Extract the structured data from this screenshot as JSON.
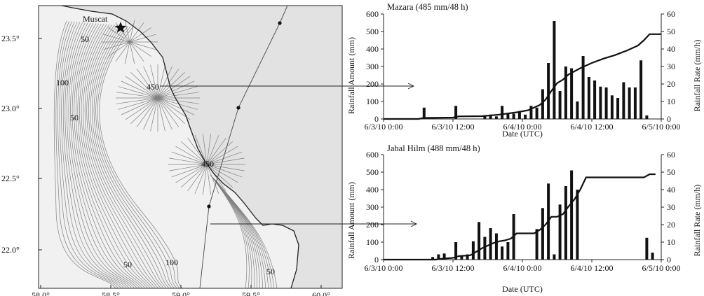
{
  "map": {
    "city": "Muscat",
    "lat_ticks": [
      "23.5°",
      "23.0°",
      "22.5°",
      "22.0°"
    ],
    "lon_ticks": [
      "58.0°",
      "58.5°",
      "59.0°",
      "59.5°",
      "60.0°"
    ],
    "contour_labels": [
      "50",
      "100",
      "50",
      "450",
      "450",
      "50",
      "100",
      "50"
    ]
  },
  "chart_data": [
    {
      "type": "bar",
      "title": "Mazara (485 mm/48 h)",
      "xlabel": "Date (UTC)",
      "ylabel": "Rainfall Amount (mm)",
      "ylabel_right": "Rainfall Rate (mm/h)",
      "ylim": [
        0,
        600
      ],
      "ylim_right": [
        0,
        60
      ],
      "y_ticks": [
        "0",
        "100",
        "200",
        "300",
        "400",
        "500",
        "600"
      ],
      "y_ticks_right": [
        "0",
        "10",
        "20",
        "30",
        "40",
        "50",
        "60"
      ],
      "x_ticks": [
        "6/3/10 0:00",
        "6/3/10 12:00",
        "6/4/10 0:00",
        "6/4/10 12:00",
        "6/5/10 0:00"
      ],
      "xlim_hours": [
        0,
        48
      ],
      "series": [
        {
          "kind": "bar",
          "axis": "right",
          "points": [
            {
              "h": 7.0,
              "v": 6.5
            },
            {
              "h": 12.5,
              "v": 7.5
            },
            {
              "h": 17.5,
              "v": 1.5
            },
            {
              "h": 18.5,
              "v": 2.5
            },
            {
              "h": 19.5,
              "v": 1.5
            },
            {
              "h": 20.5,
              "v": 7.5
            },
            {
              "h": 21.5,
              "v": 3.5
            },
            {
              "h": 22.5,
              "v": 3
            },
            {
              "h": 23.5,
              "v": 4.5
            },
            {
              "h": 24.5,
              "v": 2.5
            },
            {
              "h": 25.5,
              "v": 7.5
            },
            {
              "h": 26.5,
              "v": 6.5
            },
            {
              "h": 27.5,
              "v": 17
            },
            {
              "h": 28.5,
              "v": 32
            },
            {
              "h": 29.5,
              "v": 56
            },
            {
              "h": 30.5,
              "v": 16
            },
            {
              "h": 31.5,
              "v": 30
            },
            {
              "h": 32.5,
              "v": 29
            },
            {
              "h": 33.5,
              "v": 10
            },
            {
              "h": 34.5,
              "v": 36
            },
            {
              "h": 35.5,
              "v": 24
            },
            {
              "h": 36.5,
              "v": 22
            },
            {
              "h": 37.5,
              "v": 18.5
            },
            {
              "h": 38.5,
              "v": 18
            },
            {
              "h": 39.5,
              "v": 13.5
            },
            {
              "h": 40.5,
              "v": 12
            },
            {
              "h": 41.5,
              "v": 21
            },
            {
              "h": 42.5,
              "v": 18
            },
            {
              "h": 43.5,
              "v": 18
            },
            {
              "h": 44.5,
              "v": 33.5
            },
            {
              "h": 45.5,
              "v": 2
            }
          ]
        },
        {
          "kind": "line",
          "axis": "left",
          "points": [
            {
              "h": 0,
              "v": 0
            },
            {
              "h": 6,
              "v": 0
            },
            {
              "h": 7,
              "v": 6
            },
            {
              "h": 12,
              "v": 8
            },
            {
              "h": 13,
              "v": 15
            },
            {
              "h": 17,
              "v": 16
            },
            {
              "h": 20,
              "v": 25
            },
            {
              "h": 23,
              "v": 38
            },
            {
              "h": 25,
              "v": 50
            },
            {
              "h": 27,
              "v": 80
            },
            {
              "h": 28,
              "v": 110
            },
            {
              "h": 29,
              "v": 160
            },
            {
              "h": 30,
              "v": 205
            },
            {
              "h": 31,
              "v": 225
            },
            {
              "h": 32,
              "v": 255
            },
            {
              "h": 34,
              "v": 290
            },
            {
              "h": 36,
              "v": 320
            },
            {
              "h": 38,
              "v": 345
            },
            {
              "h": 40,
              "v": 365
            },
            {
              "h": 42,
              "v": 390
            },
            {
              "h": 44,
              "v": 420
            },
            {
              "h": 45,
              "v": 450
            },
            {
              "h": 46,
              "v": 485
            },
            {
              "h": 48,
              "v": 485
            }
          ]
        }
      ]
    },
    {
      "type": "bar",
      "title": "Jabal Hilm (488 mm/48 h)",
      "xlabel": "Date (UTC)",
      "ylabel": "Rainfall Amount (mm)",
      "ylabel_right": "Rainfall Rate (mm/h)",
      "ylim": [
        0,
        600
      ],
      "ylim_right": [
        0,
        60
      ],
      "y_ticks": [
        "0",
        "100",
        "200",
        "300",
        "400",
        "500",
        "600"
      ],
      "y_ticks_right": [
        "0",
        "10",
        "20",
        "30",
        "40",
        "50",
        "60"
      ],
      "x_ticks": [
        "6/3/10 0:00",
        "6/3/10 12:00",
        "6/4/10 0:00",
        "6/4/10 12:00",
        "6/5/10 0:00"
      ],
      "xlim_hours": [
        0,
        48
      ],
      "series": [
        {
          "kind": "bar",
          "axis": "right",
          "points": [
            {
              "h": 8.5,
              "v": 1.5
            },
            {
              "h": 9.5,
              "v": 3
            },
            {
              "h": 10.5,
              "v": 3.5
            },
            {
              "h": 12.5,
              "v": 10
            },
            {
              "h": 13.5,
              "v": 2
            },
            {
              "h": 14.5,
              "v": 3
            },
            {
              "h": 15.5,
              "v": 10.5
            },
            {
              "h": 16.5,
              "v": 21.5
            },
            {
              "h": 17.5,
              "v": 13
            },
            {
              "h": 18.5,
              "v": 18
            },
            {
              "h": 19.5,
              "v": 15
            },
            {
              "h": 20.5,
              "v": 7.5
            },
            {
              "h": 21.5,
              "v": 10
            },
            {
              "h": 22.5,
              "v": 26
            },
            {
              "h": 26.5,
              "v": 17.5
            },
            {
              "h": 27.5,
              "v": 29.5
            },
            {
              "h": 28.5,
              "v": 43.5
            },
            {
              "h": 29.5,
              "v": 3
            },
            {
              "h": 30.5,
              "v": 31.5
            },
            {
              "h": 31.5,
              "v": 42
            },
            {
              "h": 32.5,
              "v": 51
            },
            {
              "h": 33.5,
              "v": 40
            },
            {
              "h": 45.5,
              "v": 12.5
            },
            {
              "h": 46.5,
              "v": 4
            }
          ]
        },
        {
          "kind": "line",
          "axis": "left",
          "points": [
            {
              "h": 0,
              "v": 0
            },
            {
              "h": 9,
              "v": 0
            },
            {
              "h": 10,
              "v": 5
            },
            {
              "h": 12,
              "v": 10
            },
            {
              "h": 13,
              "v": 20
            },
            {
              "h": 15,
              "v": 25
            },
            {
              "h": 16,
              "v": 45
            },
            {
              "h": 17,
              "v": 65
            },
            {
              "h": 18,
              "v": 80
            },
            {
              "h": 19,
              "v": 95
            },
            {
              "h": 20,
              "v": 105
            },
            {
              "h": 21,
              "v": 110
            },
            {
              "h": 22,
              "v": 120
            },
            {
              "h": 23,
              "v": 150
            },
            {
              "h": 26,
              "v": 150
            },
            {
              "h": 27,
              "v": 170
            },
            {
              "h": 28,
              "v": 200
            },
            {
              "h": 29,
              "v": 245
            },
            {
              "h": 30,
              "v": 245
            },
            {
              "h": 31,
              "v": 260
            },
            {
              "h": 32,
              "v": 305
            },
            {
              "h": 33,
              "v": 345
            },
            {
              "h": 34,
              "v": 400
            },
            {
              "h": 35,
              "v": 470
            },
            {
              "h": 45,
              "v": 470
            },
            {
              "h": 46,
              "v": 488
            },
            {
              "h": 47,
              "v": 488
            }
          ]
        }
      ]
    }
  ]
}
